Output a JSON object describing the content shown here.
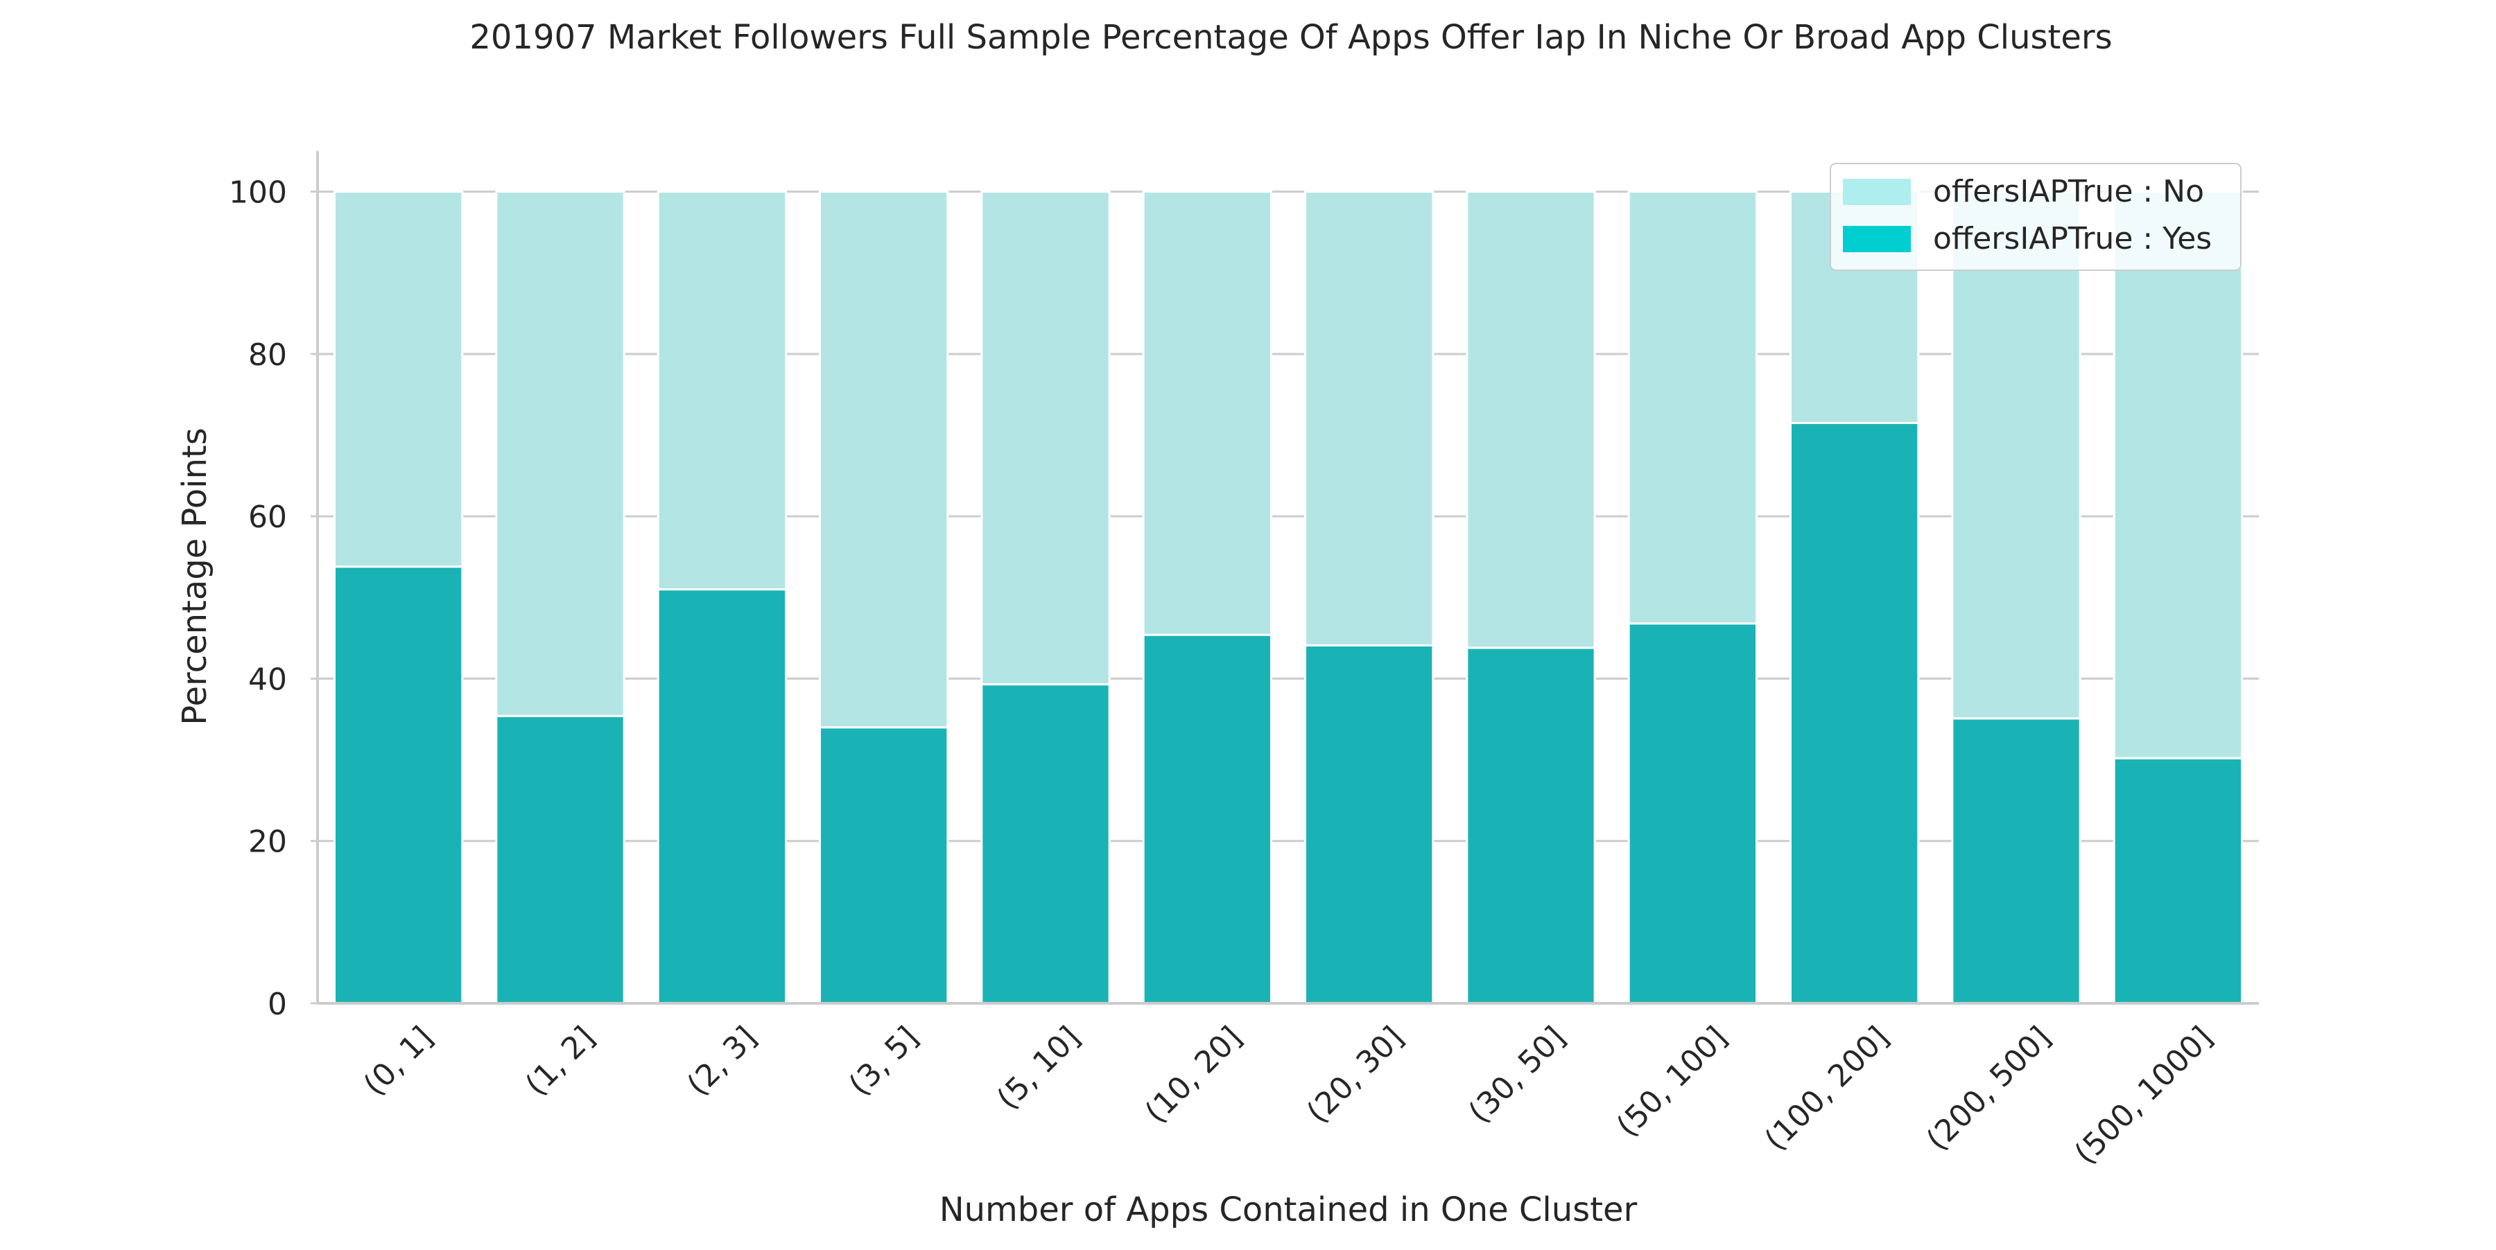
{
  "chart_data": {
    "type": "bar",
    "stacked": true,
    "title": "201907 Market Followers Full Sample Percentage Of Apps Offer Iap In Niche Or Broad App Clusters",
    "xlabel": "Number of Apps Contained in One Cluster",
    "ylabel": "Percentage Points",
    "ylim": [
      0,
      105
    ],
    "yticks": [
      0,
      20,
      40,
      60,
      80,
      100
    ],
    "grid": true,
    "legend_position": "top-right",
    "categories": [
      "(0, 1]",
      "(1, 2]",
      "(2, 3]",
      "(3, 5]",
      "(5, 10]",
      "(10, 20]",
      "(20, 30]",
      "(30, 50]",
      "(50, 100]",
      "(100, 200]",
      "(200, 500]",
      "(500, 1000]"
    ],
    "series": [
      {
        "name": "offersIAPTrue : Yes",
        "color": "#1ab3b5",
        "legend_color": "#00ced1",
        "values": [
          53.8,
          35.4,
          51.0,
          34.0,
          39.3,
          45.4,
          44.1,
          43.8,
          46.8,
          71.5,
          35.1,
          30.2
        ]
      },
      {
        "name": "offersIAPTrue : No",
        "color": "#b4e5e5",
        "legend_color": "#afeeee",
        "values": [
          46.2,
          64.6,
          49.0,
          66.0,
          60.7,
          54.6,
          55.9,
          56.2,
          53.2,
          28.5,
          64.9,
          69.8
        ]
      }
    ]
  }
}
